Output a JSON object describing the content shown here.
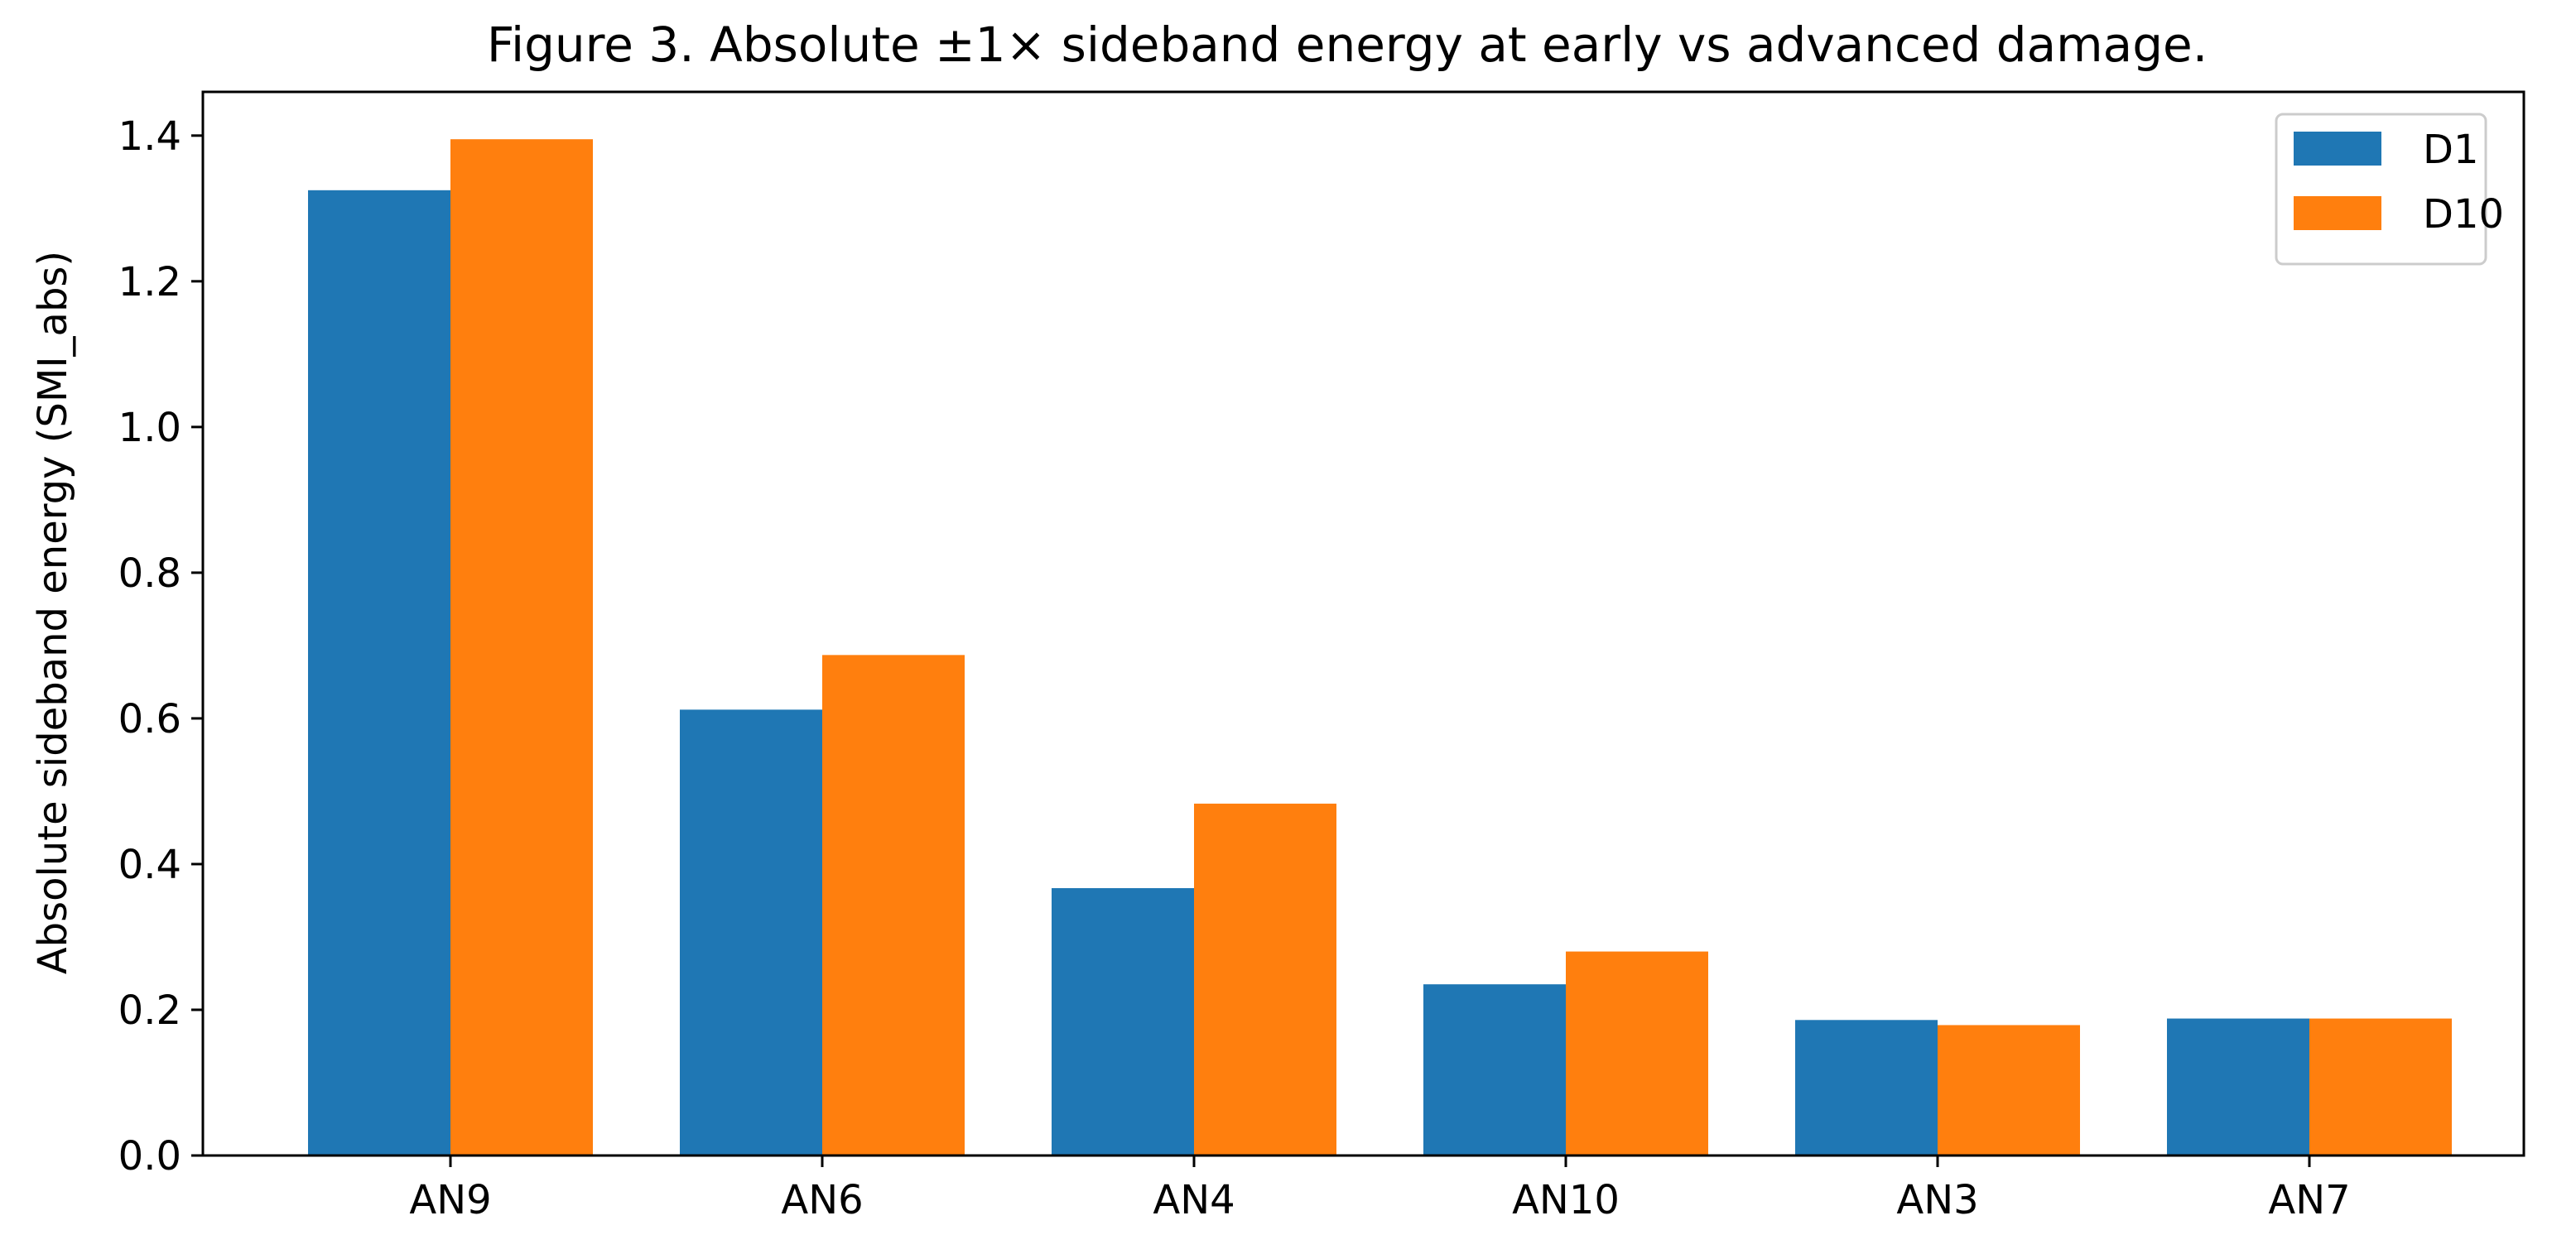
{
  "chart_data": {
    "type": "bar",
    "title": "Figure 3. Absolute ±1× sideband energy at early vs advanced damage.",
    "xlabel": "",
    "ylabel": "Absolute sideband energy (SMI_abs)",
    "categories": [
      "AN9",
      "AN6",
      "AN4",
      "AN10",
      "AN3",
      "AN7"
    ],
    "series": [
      {
        "name": "D1",
        "color": "#1f77b4",
        "values": [
          1.325,
          0.612,
          0.367,
          0.235,
          0.186,
          0.188
        ]
      },
      {
        "name": "D10",
        "color": "#ff7f0e",
        "values": [
          1.395,
          0.687,
          0.483,
          0.28,
          0.179,
          0.188
        ]
      }
    ],
    "ylim": [
      0.0,
      1.46
    ],
    "yticks": [
      {
        "value": 0.0,
        "label": "0.0"
      },
      {
        "value": 0.2,
        "label": "0.2"
      },
      {
        "value": 0.4,
        "label": "0.4"
      },
      {
        "value": 0.6,
        "label": "0.6"
      },
      {
        "value": 0.8,
        "label": "0.8"
      },
      {
        "value": 1.0,
        "label": "1.0"
      },
      {
        "value": 1.2,
        "label": "1.2"
      },
      {
        "value": 1.4,
        "label": "1.4"
      }
    ],
    "legend_position": "top-right",
    "grid": false
  }
}
